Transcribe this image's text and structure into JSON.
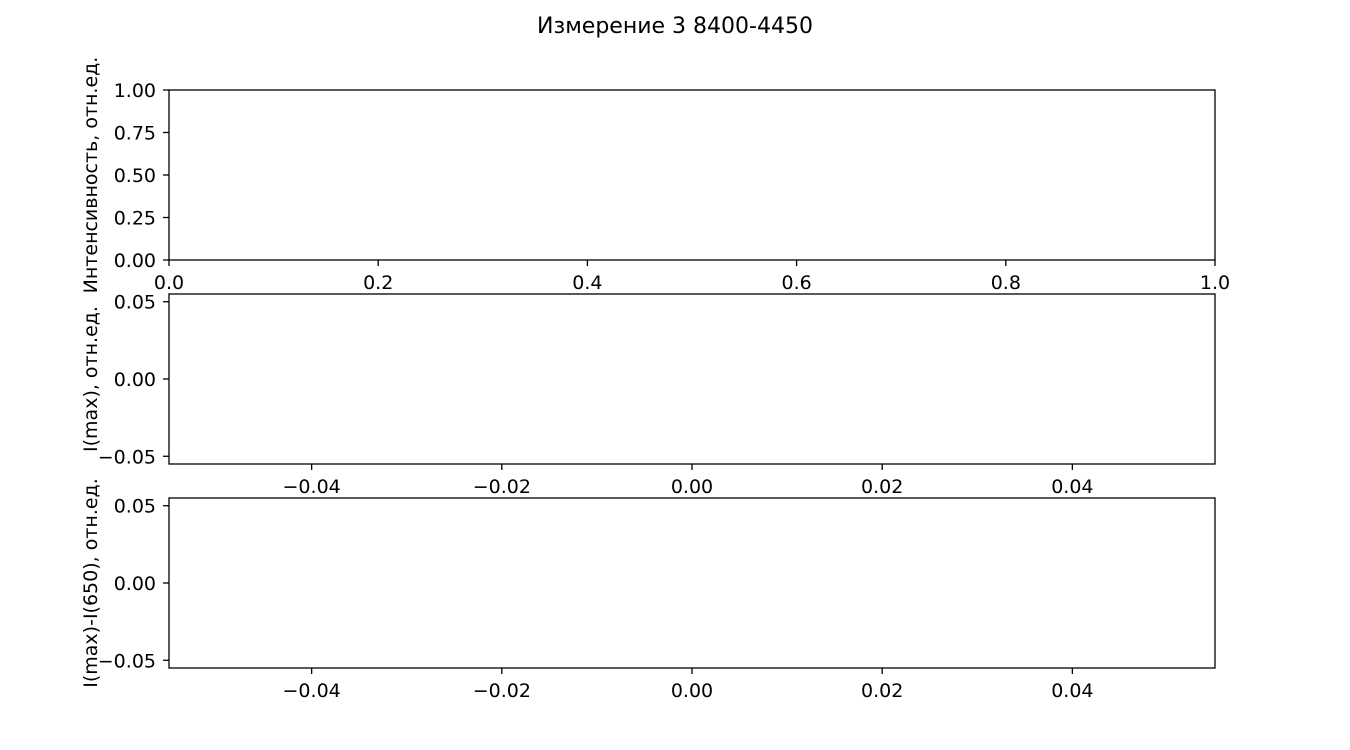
{
  "figure": {
    "title": "Измерение 3 8400-4450"
  },
  "chart_data": [
    {
      "type": "line",
      "series": [],
      "xlabel": "",
      "ylabel": "Интенсивность, отн.ед.",
      "xlim": [
        0.0,
        1.0
      ],
      "ylim": [
        0.0,
        1.0
      ],
      "xticks": [
        "0.0",
        "0.2",
        "0.4",
        "0.6",
        "0.8",
        "1.0"
      ],
      "yticks": [
        "0.00",
        "0.25",
        "0.50",
        "0.75",
        "1.00"
      ],
      "grid": false
    },
    {
      "type": "line",
      "series": [],
      "xlabel": "",
      "ylabel": "I(max), отн.ед.",
      "xlim": [
        -0.055,
        0.055
      ],
      "ylim": [
        -0.055,
        0.055
      ],
      "xticks": [
        "−0.04",
        "−0.02",
        "0.00",
        "0.02",
        "0.04"
      ],
      "yticks": [
        "−0.05",
        "0.00",
        "0.05"
      ],
      "grid": false
    },
    {
      "type": "line",
      "series": [],
      "xlabel": "",
      "ylabel": "I(max)-I(650), отн.ед.",
      "xlim": [
        -0.055,
        0.055
      ],
      "ylim": [
        -0.055,
        0.055
      ],
      "xticks": [
        "−0.04",
        "−0.02",
        "0.00",
        "0.02",
        "0.04"
      ],
      "yticks": [
        "−0.05",
        "0.00",
        "0.05"
      ],
      "grid": false
    }
  ]
}
